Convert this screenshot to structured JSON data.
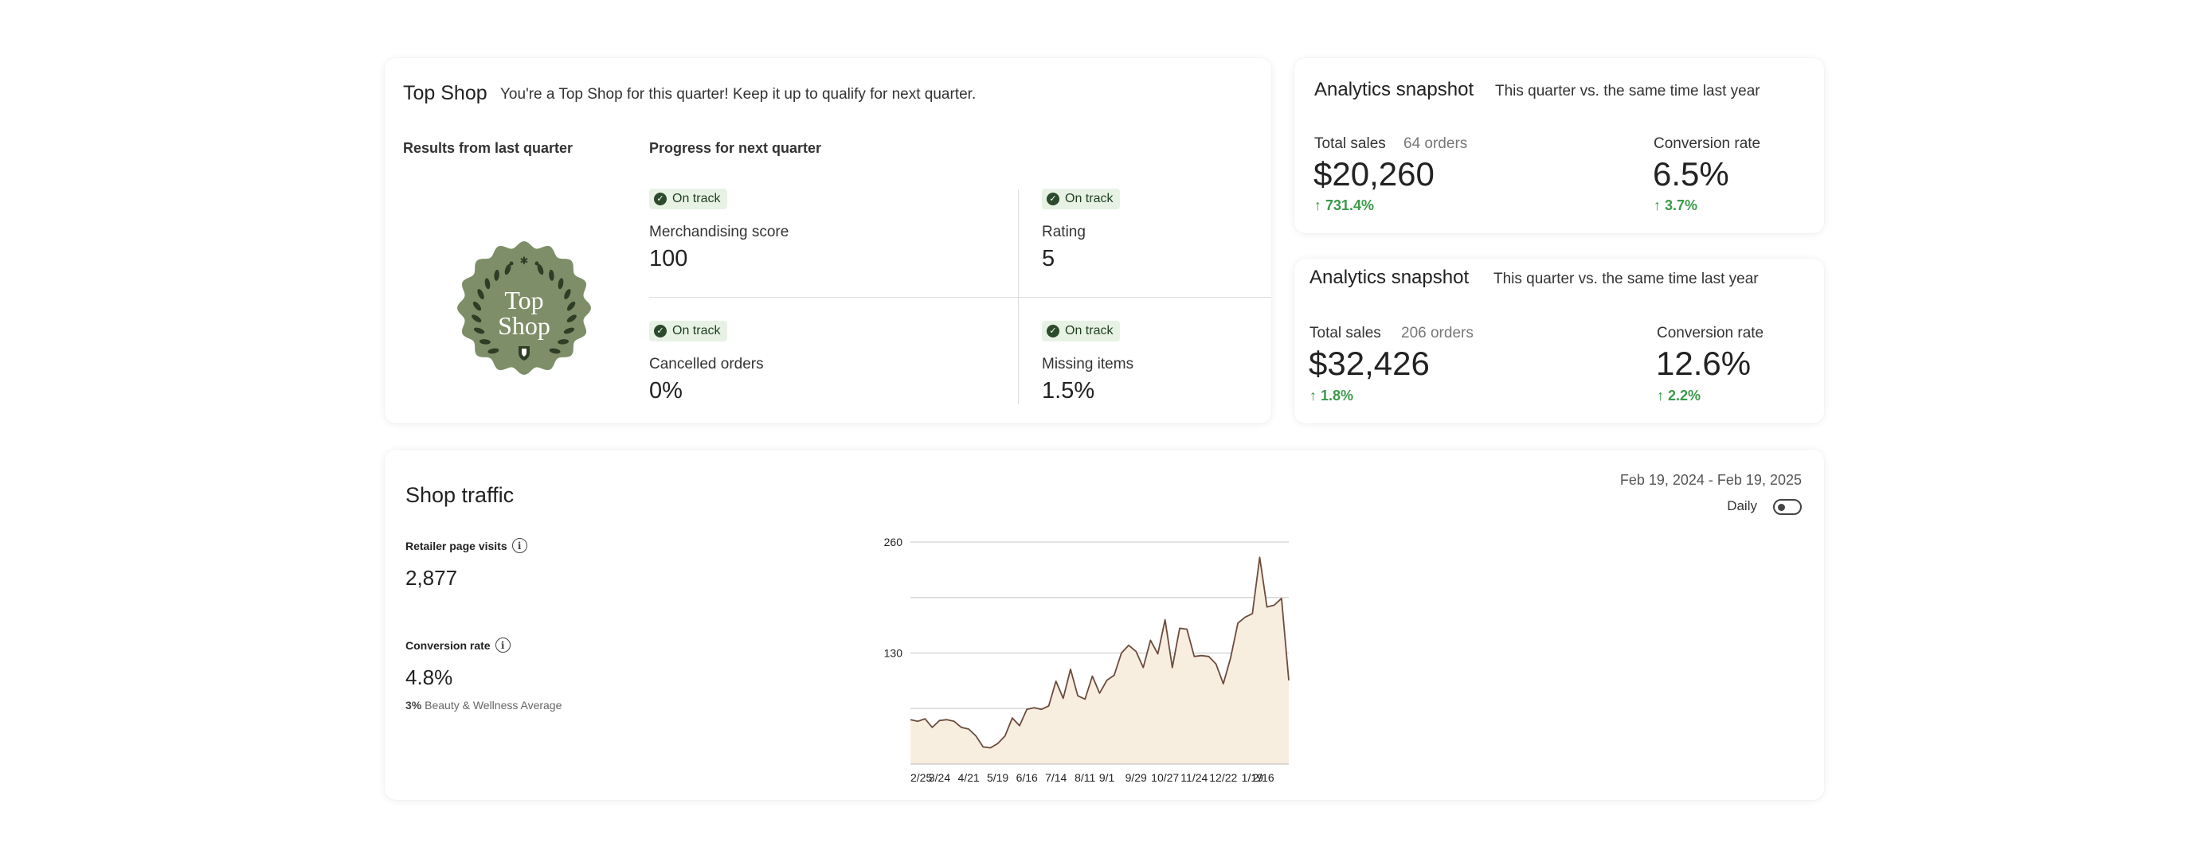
{
  "top_shop": {
    "title": "Top Shop",
    "description": "You're a Top Shop for this quarter! Keep it up to qualify for next quarter.",
    "results_label": "Results from last quarter",
    "progress_label": "Progress for next quarter",
    "badge_text_line1": "Top",
    "badge_text_line2": "Shop",
    "metrics": [
      {
        "status": "On track",
        "label": "Merchandising score",
        "value": "100"
      },
      {
        "status": "On track",
        "label": "Rating",
        "value": "5"
      },
      {
        "status": "On track",
        "label": "Cancelled orders",
        "value": "0%"
      },
      {
        "status": "On track",
        "label": "Missing items",
        "value": "1.5%"
      }
    ]
  },
  "analytics": [
    {
      "title": "Analytics snapshot",
      "description": "This quarter vs. the same time last year",
      "sales_label": "Total sales",
      "orders": "64 orders",
      "sales_value": "$20,260",
      "sales_change": "↑ 731.4%",
      "conv_label": "Conversion rate",
      "conv_value": "6.5%",
      "conv_change": "↑ 3.7%"
    },
    {
      "title": "Analytics snapshot",
      "description": "This quarter vs. the same time last year",
      "sales_label": "Total sales",
      "orders": "206 orders",
      "sales_value": "$32,426",
      "sales_change": "↑ 1.8%",
      "conv_label": "Conversion rate",
      "conv_value": "12.6%",
      "conv_change": "↑ 2.2%"
    }
  ],
  "traffic": {
    "title": "Shop traffic",
    "visits_label": "Retailer page visits",
    "visits_value": "2,877",
    "conv_label": "Conversion rate",
    "conv_value": "4.8%",
    "bench_value": "3%",
    "bench_label": "Beauty & Wellness Average",
    "date_range": "Feb 19, 2024 - Feb 19, 2025",
    "toggle_label": "Daily",
    "toggle_on": false
  },
  "colors": {
    "accent_green": "#3a9a48",
    "badge_bg": "#e7f2e5",
    "seal_green": "#7e8e68",
    "chart_fill": "#f8eee0",
    "chart_line": "#6b4c3e"
  },
  "chart_data": {
    "type": "area",
    "ylim": [
      0,
      260
    ],
    "yticks": [
      130,
      260
    ],
    "xtick_labels": [
      "2/25",
      "3/24",
      "4/21",
      "5/19",
      "6/16",
      "7/14",
      "8/11",
      "9/1",
      "9/29",
      "10/27",
      "11/24",
      "12/22",
      "1/19",
      "2/16"
    ],
    "xtick_index": [
      0,
      4,
      8,
      12,
      16,
      20,
      24,
      27,
      31,
      35,
      39,
      43,
      47,
      50
    ],
    "values": [
      52,
      50,
      53,
      43,
      51,
      52,
      50,
      43,
      41,
      33,
      20,
      19,
      24,
      33,
      54,
      45,
      64,
      66,
      64,
      68,
      97,
      77,
      111,
      80,
      76,
      103,
      83,
      98,
      104,
      130,
      139,
      132,
      113,
      145,
      129,
      169,
      113,
      159,
      158,
      126,
      127,
      126,
      117,
      94,
      124,
      165,
      172,
      176,
      242,
      184,
      186,
      194,
      98
    ]
  }
}
